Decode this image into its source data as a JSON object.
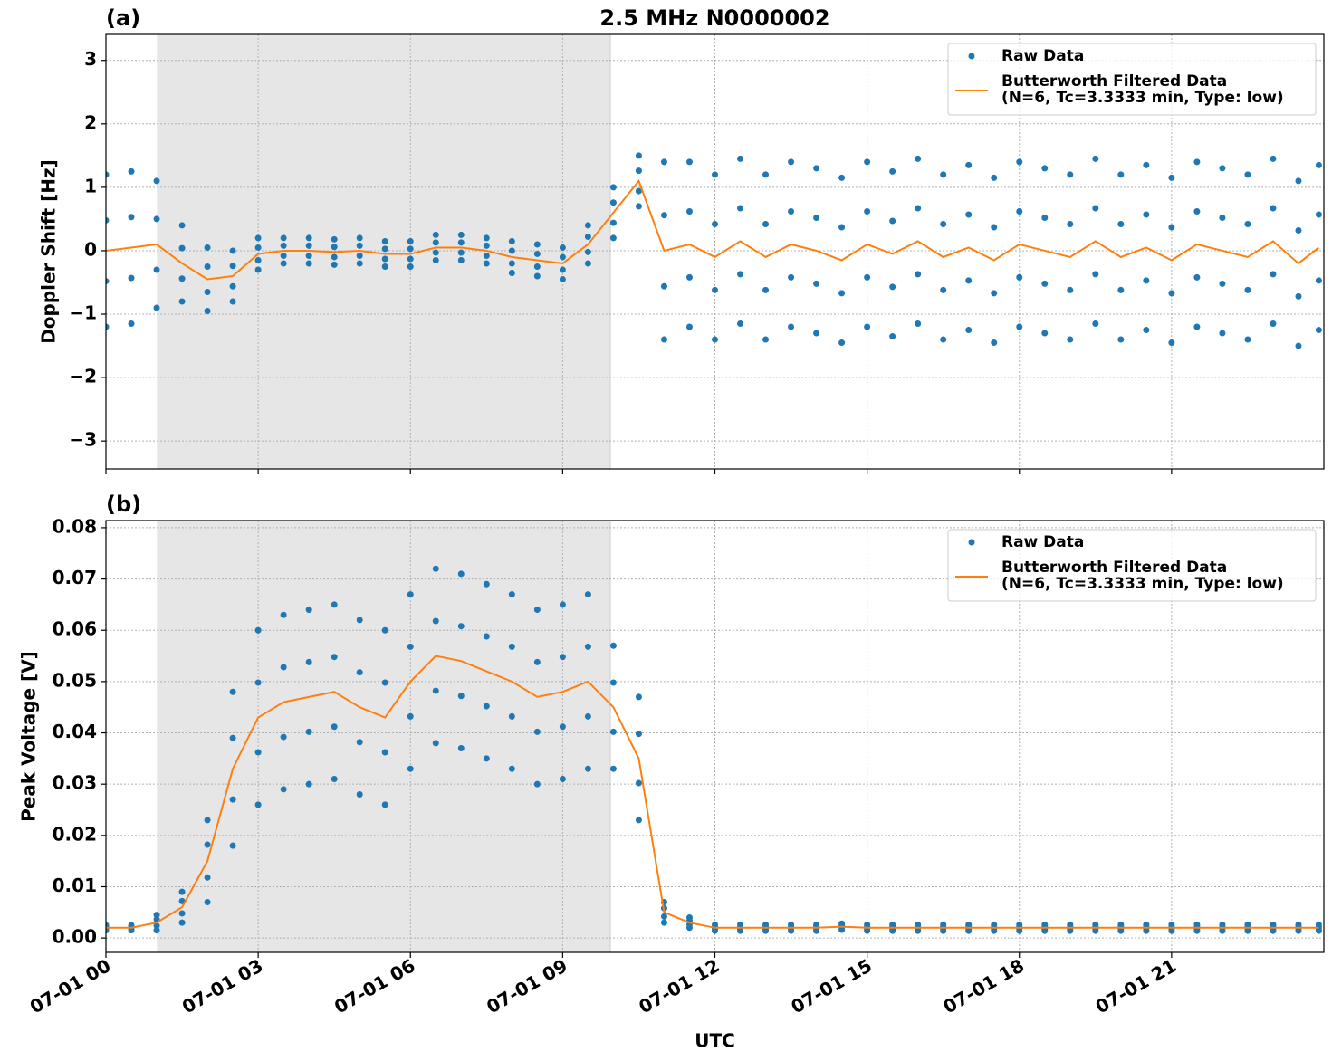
{
  "chart_data": [
    {
      "type": "scatter",
      "panel_label": "(a)",
      "title": "2.5 MHz N0000002",
      "ylabel": "Doppler Shift [Hz]",
      "xlim": [
        0,
        24
      ],
      "xticks": [
        0,
        3,
        6,
        9,
        12,
        15,
        18,
        21
      ],
      "ylim": [
        -3.44,
        3.41
      ],
      "yticks": [
        {
          "value": -3,
          "label": "−3"
        },
        {
          "value": -2,
          "label": "−2"
        },
        {
          "value": -1,
          "label": "−1"
        },
        0,
        1,
        2,
        3
      ],
      "grid": true,
      "legend": "upper right",
      "shade": [
        1.02,
        9.94
      ],
      "x": [
        0,
        0.5,
        1,
        1.5,
        2,
        2.5,
        3,
        3.5,
        4,
        4.5,
        5,
        5.5,
        6,
        6.5,
        7,
        7.5,
        8,
        8.5,
        9,
        9.5,
        10,
        10.5,
        11,
        11.5,
        12,
        12.5,
        13,
        13.5,
        14,
        14.5,
        15,
        15.5,
        16,
        16.5,
        17,
        17.5,
        18,
        18.5,
        19,
        19.5,
        20,
        20.5,
        21,
        21.5,
        22,
        22.5,
        23,
        23.5,
        23.9
      ],
      "series": [
        {
          "name": "Raw Data",
          "color": "#1f77b4",
          "values": [
            [
              1.2,
              0.48,
              -0.48,
              -1.2
            ],
            [
              1.25,
              0.53,
              -0.43,
              -1.15
            ],
            [
              1.1,
              0.5,
              -0.3,
              -0.9
            ],
            [
              0.4,
              0.04,
              -0.44,
              -0.8
            ],
            [
              0.05,
              -0.25,
              -0.65,
              -0.95
            ],
            [
              0,
              -0.24,
              -0.56,
              -0.8
            ],
            [
              0.2,
              0.05,
              -0.15,
              -0.3
            ],
            [
              0.2,
              0.08,
              -0.08,
              -0.2
            ],
            [
              0.2,
              0.08,
              -0.08,
              -0.2
            ],
            [
              0.18,
              0.06,
              -0.1,
              -0.22
            ],
            [
              0.2,
              0.08,
              -0.08,
              -0.2
            ],
            [
              0.15,
              0.03,
              -0.13,
              -0.25
            ],
            [
              0.15,
              0.03,
              -0.13,
              -0.25
            ],
            [
              0.25,
              0.13,
              -0.03,
              -0.15
            ],
            [
              0.25,
              0.13,
              -0.03,
              -0.15
            ],
            [
              0.2,
              0.08,
              -0.08,
              -0.2
            ],
            [
              0.15,
              0,
              -0.2,
              -0.35
            ],
            [
              0.1,
              -0.05,
              -0.25,
              -0.4
            ],
            [
              0.05,
              -0.1,
              -0.3,
              -0.45
            ],
            [
              0.4,
              0.22,
              -0.02,
              -0.2
            ],
            [
              1.0,
              0.76,
              0.44,
              0.2
            ],
            [
              1.5,
              1.26,
              0.94,
              0.7
            ],
            [
              1.4,
              0.56,
              -0.56,
              -1.4
            ],
            [
              1.4,
              0.62,
              -0.42,
              -1.2
            ],
            [
              1.2,
              0.42,
              -0.62,
              -1.4
            ],
            [
              1.45,
              0.67,
              -0.37,
              -1.15
            ],
            [
              1.2,
              0.42,
              -0.62,
              -1.4
            ],
            [
              1.4,
              0.62,
              -0.42,
              -1.2
            ],
            [
              1.3,
              0.52,
              -0.52,
              -1.3
            ],
            [
              1.15,
              0.37,
              -0.67,
              -1.45
            ],
            [
              1.4,
              0.62,
              -0.42,
              -1.2
            ],
            [
              1.25,
              0.47,
              -0.57,
              -1.35
            ],
            [
              1.45,
              0.67,
              -0.37,
              -1.15
            ],
            [
              1.2,
              0.42,
              -0.62,
              -1.4
            ],
            [
              1.35,
              0.57,
              -0.47,
              -1.25
            ],
            [
              1.15,
              0.37,
              -0.67,
              -1.45
            ],
            [
              1.4,
              0.62,
              -0.42,
              -1.2
            ],
            [
              1.3,
              0.52,
              -0.52,
              -1.3
            ],
            [
              1.2,
              0.42,
              -0.62,
              -1.4
            ],
            [
              1.45,
              0.67,
              -0.37,
              -1.15
            ],
            [
              1.2,
              0.42,
              -0.62,
              -1.4
            ],
            [
              1.35,
              0.57,
              -0.47,
              -1.25
            ],
            [
              1.15,
              0.37,
              -0.67,
              -1.45
            ],
            [
              1.4,
              0.62,
              -0.42,
              -1.2
            ],
            [
              1.3,
              0.52,
              -0.52,
              -1.3
            ],
            [
              1.2,
              0.42,
              -0.62,
              -1.4
            ],
            [
              1.45,
              0.67,
              -0.37,
              -1.15
            ],
            [
              1.1,
              0.32,
              -0.72,
              -1.5
            ],
            [
              1.35,
              0.57,
              -0.47,
              -1.25
            ]
          ]
        },
        {
          "name": "Butterworth Filtered Data\n(N=6, Tc=3.3333 min, Type: low)",
          "color": "#ff7f0e",
          "type": "line",
          "values": [
            0.0,
            0.05,
            0.1,
            -0.2,
            -0.45,
            -0.4,
            -0.05,
            0.0,
            0.0,
            -0.02,
            0.0,
            -0.05,
            -0.05,
            0.05,
            0.05,
            0.0,
            -0.1,
            -0.15,
            -0.2,
            0.1,
            0.6,
            1.1,
            0.0,
            0.1,
            -0.1,
            0.15,
            -0.1,
            0.1,
            0.0,
            -0.15,
            0.1,
            -0.05,
            0.15,
            -0.1,
            0.05,
            -0.15,
            0.1,
            0.0,
            -0.1,
            0.15,
            -0.1,
            0.05,
            -0.15,
            0.1,
            0.0,
            -0.1,
            0.15,
            -0.2,
            0.05
          ]
        }
      ]
    },
    {
      "type": "scatter",
      "panel_label": "(b)",
      "ylabel": "Peak Voltage [V]",
      "xlabel": "UTC",
      "xlim": [
        0,
        24
      ],
      "xticks": [
        {
          "value": 0,
          "label": "07-01 00"
        },
        {
          "value": 3,
          "label": "07-01 03"
        },
        {
          "value": 6,
          "label": "07-01 06"
        },
        {
          "value": 9,
          "label": "07-01 09"
        },
        {
          "value": 12,
          "label": "07-01 12"
        },
        {
          "value": 15,
          "label": "07-01 15"
        },
        {
          "value": 18,
          "label": "07-01 18"
        },
        {
          "value": 21,
          "label": "07-01 21"
        }
      ],
      "ylim": [
        -0.0028,
        0.0814
      ],
      "yticks": [
        {
          "value": 0,
          "label": "0.00"
        },
        0.01,
        0.02,
        0.03,
        0.04,
        0.05,
        0.06,
        0.07,
        0.08
      ],
      "grid": true,
      "legend": "upper right",
      "shade": [
        1.02,
        9.94
      ],
      "x": [
        0,
        0.5,
        1,
        1.5,
        2,
        2.5,
        3,
        3.5,
        4,
        4.5,
        5,
        5.5,
        6,
        6.5,
        7,
        7.5,
        8,
        8.5,
        9,
        9.5,
        10,
        10.5,
        11,
        11.5,
        12,
        12.5,
        13,
        13.5,
        14,
        14.5,
        15,
        15.5,
        16,
        16.5,
        17,
        17.5,
        18,
        18.5,
        19,
        19.5,
        20,
        20.5,
        21,
        21.5,
        22,
        22.5,
        23,
        23.5,
        23.9
      ],
      "series": [
        {
          "name": "Raw Data",
          "color": "#1f77b4",
          "values": [
            [
              0.0025,
              0.0022,
              0.0018,
              0.0015
            ],
            [
              0.0025,
              0.0022,
              0.0018,
              0.0015
            ],
            [
              0.0045,
              0.0036,
              0.0024,
              0.0015
            ],
            [
              0.009,
              0.0072,
              0.0048,
              0.003
            ],
            [
              0.023,
              0.0182,
              0.0118,
              0.007
            ],
            [
              0.048,
              0.039,
              0.027,
              0.018
            ],
            [
              0.06,
              0.0498,
              0.0362,
              0.026
            ],
            [
              0.063,
              0.0528,
              0.0392,
              0.029
            ],
            [
              0.064,
              0.0538,
              0.0402,
              0.03
            ],
            [
              0.065,
              0.0548,
              0.0412,
              0.031
            ],
            [
              0.062,
              0.0518,
              0.0382,
              0.028
            ],
            [
              0.06,
              0.0498,
              0.0362,
              0.026
            ],
            [
              0.067,
              0.0568,
              0.0432,
              0.033
            ],
            [
              0.072,
              0.0618,
              0.0482,
              0.038
            ],
            [
              0.071,
              0.0608,
              0.0472,
              0.037
            ],
            [
              0.069,
              0.0588,
              0.0452,
              0.035
            ],
            [
              0.067,
              0.0568,
              0.0432,
              0.033
            ],
            [
              0.064,
              0.0538,
              0.0402,
              0.03
            ],
            [
              0.065,
              0.0548,
              0.0412,
              0.031
            ],
            [
              0.067,
              0.0568,
              0.0432,
              0.033
            ],
            [
              0.057,
              0.0498,
              0.0402,
              0.033
            ],
            [
              0.047,
              0.0398,
              0.0302,
              0.023
            ],
            [
              0.007,
              0.0058,
              0.0042,
              0.003
            ],
            [
              0.004,
              0.0034,
              0.0026,
              0.002
            ],
            [
              0.0026,
              0.0022,
              0.0018,
              0.0014
            ],
            [
              0.0026,
              0.0022,
              0.0018,
              0.0014
            ],
            [
              0.0026,
              0.0022,
              0.0018,
              0.0014
            ],
            [
              0.0026,
              0.0022,
              0.0018,
              0.0014
            ],
            [
              0.0026,
              0.0022,
              0.0018,
              0.0014
            ],
            [
              0.0028,
              0.0024,
              0.002,
              0.0016
            ],
            [
              0.0026,
              0.0022,
              0.0018,
              0.0014
            ],
            [
              0.0026,
              0.0022,
              0.0018,
              0.0014
            ],
            [
              0.0026,
              0.0022,
              0.0018,
              0.0014
            ],
            [
              0.0026,
              0.0022,
              0.0018,
              0.0014
            ],
            [
              0.0026,
              0.0022,
              0.0018,
              0.0014
            ],
            [
              0.0026,
              0.0022,
              0.0018,
              0.0014
            ],
            [
              0.0026,
              0.0022,
              0.0018,
              0.0014
            ],
            [
              0.0026,
              0.0022,
              0.0018,
              0.0014
            ],
            [
              0.0026,
              0.0022,
              0.0018,
              0.0014
            ],
            [
              0.0026,
              0.0022,
              0.0018,
              0.0014
            ],
            [
              0.0026,
              0.0022,
              0.0018,
              0.0014
            ],
            [
              0.0026,
              0.0022,
              0.0018,
              0.0014
            ],
            [
              0.0026,
              0.0022,
              0.0018,
              0.0014
            ],
            [
              0.0026,
              0.0022,
              0.0018,
              0.0014
            ],
            [
              0.0026,
              0.0022,
              0.0018,
              0.0014
            ],
            [
              0.0026,
              0.0022,
              0.0018,
              0.0014
            ],
            [
              0.0026,
              0.0022,
              0.0018,
              0.0014
            ],
            [
              0.0026,
              0.0022,
              0.0018,
              0.0014
            ],
            [
              0.0026,
              0.0022,
              0.0018,
              0.0014
            ]
          ]
        },
        {
          "name": "Butterworth Filtered Data\n(N=6, Tc=3.3333 min, Type: low)",
          "color": "#ff7f0e",
          "type": "line",
          "values": [
            0.002,
            0.002,
            0.003,
            0.006,
            0.015,
            0.033,
            0.043,
            0.046,
            0.047,
            0.048,
            0.045,
            0.043,
            0.05,
            0.055,
            0.054,
            0.052,
            0.05,
            0.047,
            0.048,
            0.05,
            0.045,
            0.035,
            0.005,
            0.003,
            0.002,
            0.002,
            0.002,
            0.002,
            0.002,
            0.0022,
            0.002,
            0.002,
            0.002,
            0.002,
            0.002,
            0.002,
            0.002,
            0.002,
            0.002,
            0.002,
            0.002,
            0.002,
            0.002,
            0.002,
            0.002,
            0.002,
            0.002,
            0.002,
            0.002
          ]
        }
      ]
    }
  ]
}
